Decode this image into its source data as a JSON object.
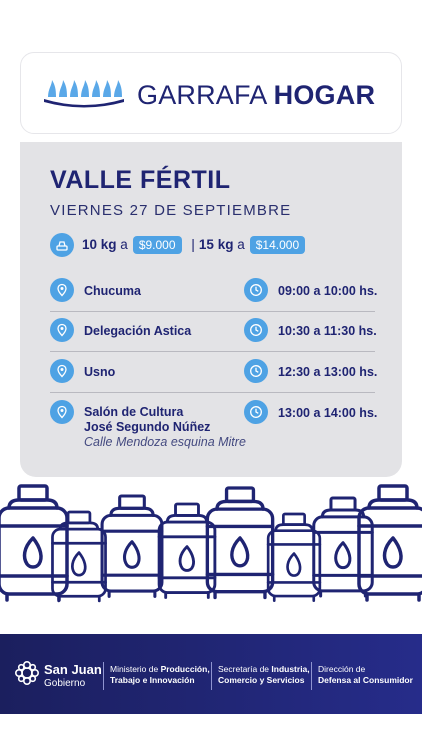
{
  "brand": {
    "title_light": "GARRAFA ",
    "title_bold": "HOGAR"
  },
  "location": "VALLE FÉRTIL",
  "date": "VIERNES 27 DE SEPTIEMBRE",
  "prices": {
    "kg10": "10 kg",
    "a1": "a",
    "price10": "$9.000",
    "separator": "|",
    "kg15": "15 kg",
    "a2": "a",
    "price15": "$14.000"
  },
  "schedule": [
    {
      "place": "Chucuma",
      "time": "09:00 a 10:00 hs."
    },
    {
      "place": "Delegación Astica",
      "time": "10:30 a 11:30 hs."
    },
    {
      "place": "Usno",
      "time": "12:30 a 13:00 hs."
    },
    {
      "place": "Salón de Cultura",
      "place2": "José Segundo Núñez",
      "address": "Calle Mendoza esquina Mitre",
      "time": "13:00 a 14:00 hs."
    }
  ],
  "footer": {
    "org_name": "San Juan",
    "org_sub": "Gobierno",
    "ministry_a": "Ministerio de ",
    "ministry_b": "Producción,",
    "ministry_c": "Trabajo e Innovación",
    "secretaria_a": "Secretaría de ",
    "secretaria_b": "Industria,",
    "secretaria_c": "Comercio y Servicios",
    "direccion_a": "Dirección de",
    "direccion_b": "Defensa al Consumidor"
  },
  "colors": {
    "navy": "#1f2472",
    "accent": "#4ea2e4",
    "card": "#e3e3e6",
    "footer": "#262c8a"
  }
}
